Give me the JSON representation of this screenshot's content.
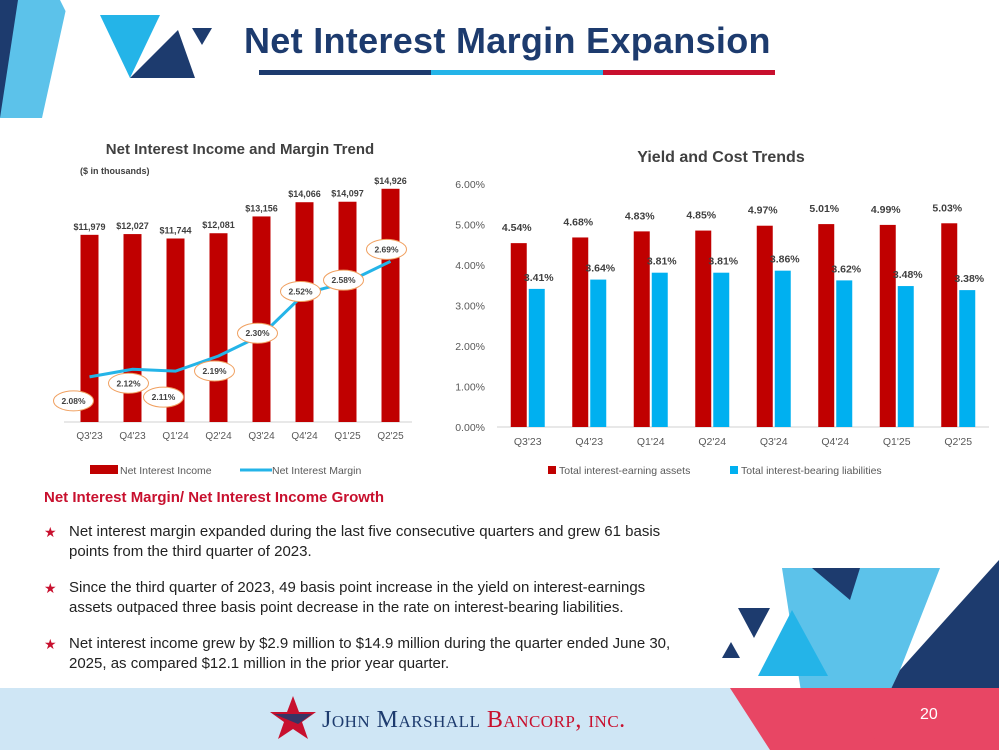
{
  "header": {
    "title": "Net Interest Margin Expansion"
  },
  "colors": {
    "navy": "#1d3b6e",
    "sky": "#24b4e8",
    "red": "#c00000",
    "pink": "#e84664",
    "lightblue": "#cfe6f5"
  },
  "chart_data": [
    {
      "type": "bar",
      "title": "Net Interest Income and Margin Trend",
      "subtitle": "($ in thousands)",
      "categories": [
        "Q3'23",
        "Q4'23",
        "Q1'24",
        "Q2'24",
        "Q3'24",
        "Q4'24",
        "Q1'25",
        "Q2'25"
      ],
      "series": [
        {
          "name": "Net Interest Income",
          "type": "bar",
          "color": "#c00000",
          "values": [
            11979,
            12027,
            11744,
            12081,
            13156,
            14066,
            14097,
            14926
          ],
          "labels": [
            "$11,979",
            "$12,027",
            "$11,744",
            "$12,081",
            "$13,156",
            "$14,066",
            "$14,097",
            "$14,926"
          ]
        },
        {
          "name": "Net Interest Margin",
          "type": "line",
          "color": "#24b4e8",
          "values": [
            2.08,
            2.12,
            2.11,
            2.19,
            2.3,
            2.52,
            2.58,
            2.69
          ],
          "labels": [
            "2.08%",
            "2.12%",
            "2.11%",
            "2.19%",
            "2.30%",
            "2.52%",
            "2.58%",
            "2.69%"
          ]
        }
      ],
      "legend": "bottom"
    },
    {
      "type": "bar",
      "title": "Yield and Cost Trends",
      "categories": [
        "Q3'23",
        "Q4'23",
        "Q1'24",
        "Q2'24",
        "Q3'24",
        "Q4'24",
        "Q1'25",
        "Q2'25"
      ],
      "yticks": [
        "0.00%",
        "1.00%",
        "2.00%",
        "3.00%",
        "4.00%",
        "5.00%",
        "6.00%"
      ],
      "ylim": [
        0,
        6
      ],
      "series": [
        {
          "name": "Total interest-earning assets",
          "color": "#c00000",
          "values": [
            4.54,
            4.68,
            4.83,
            4.85,
            4.97,
            5.01,
            4.99,
            5.03
          ],
          "labels": [
            "4.54%",
            "4.68%",
            "4.83%",
            "4.85%",
            "4.97%",
            "5.01%",
            "4.99%",
            "5.03%"
          ]
        },
        {
          "name": "Total interest-bearing liabilities",
          "color": "#00b0f0",
          "values": [
            3.41,
            3.64,
            3.81,
            3.81,
            3.86,
            3.62,
            3.48,
            3.38
          ],
          "labels": [
            "3.41%",
            "3.64%",
            "3.81%",
            "3.81%",
            "3.86%",
            "3.62%",
            "3.48%",
            "3.38%"
          ]
        }
      ],
      "grid": false,
      "legend": "bottom"
    }
  ],
  "section": {
    "heading": "Net Interest Margin/ Net Interest Income Growth",
    "bullets": [
      "Net interest margin expanded during the last five consecutive quarters and grew 61 basis points from the third quarter of 2023.",
      "Since the third quarter of 2023, 49 basis point increase in the yield on interest-earnings assets outpaced three basis point decrease in the rate on interest-bearing liabilities.",
      "Net interest income grew by $2.9 million to $14.9 million during the quarter ended June 30, 2025, as compared $12.1 million in the prior year quarter."
    ],
    "bullet_icon": "star-icon"
  },
  "footer": {
    "logo_part1": "John Marshall",
    "logo_part2": "Bancorp, inc.",
    "page_number": "20"
  }
}
